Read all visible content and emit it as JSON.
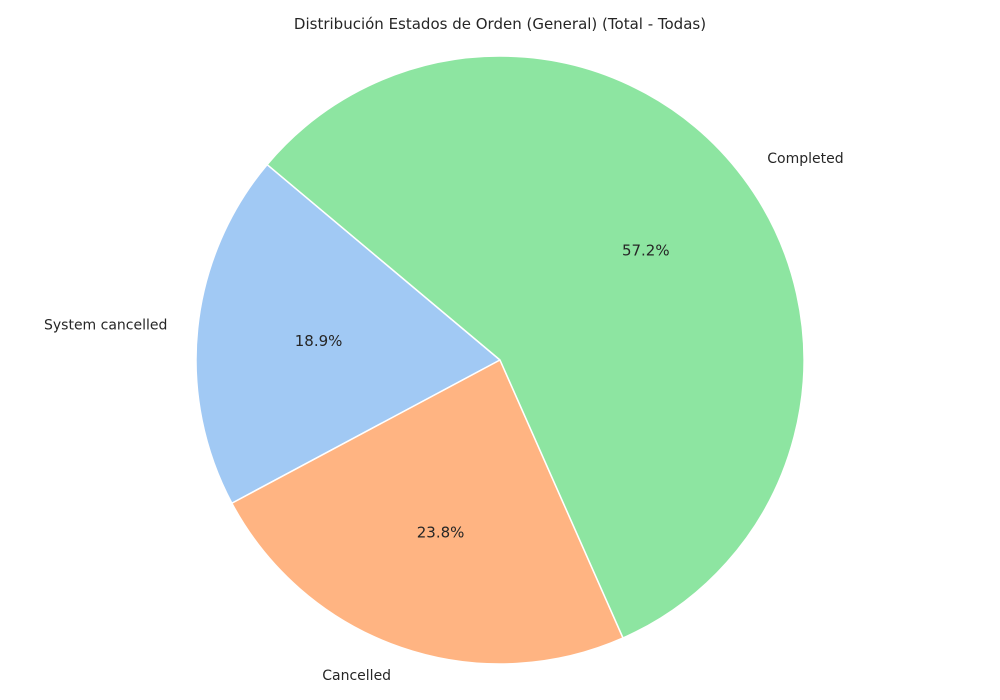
{
  "chart_data": {
    "type": "pie",
    "title": "Distribución Estados de Orden (General) (Total - Todas)",
    "start_angle_deg": 140,
    "direction": "counterclockwise",
    "slices": [
      {
        "name": "System cancelled",
        "pct_label": "18.9%",
        "value": 18.9,
        "color": "#a1c9f4"
      },
      {
        "name": "Cancelled",
        "pct_label": "23.8%",
        "value": 23.8,
        "color": "#ffb482"
      },
      {
        "name": "Completed",
        "pct_label": "57.2%",
        "value": 57.2,
        "color": "#8de5a1"
      }
    ]
  }
}
